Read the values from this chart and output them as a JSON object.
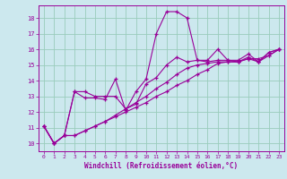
{
  "xlabel": "Windchill (Refroidissement éolien,°C)",
  "background_color": "#cce8ee",
  "line_color": "#990099",
  "grid_color": "#99ccbb",
  "xlim": [
    -0.5,
    23.5
  ],
  "ylim": [
    9.5,
    18.8
  ],
  "xticks": [
    0,
    1,
    2,
    3,
    4,
    5,
    6,
    7,
    8,
    9,
    10,
    11,
    12,
    13,
    14,
    15,
    16,
    17,
    18,
    19,
    20,
    21,
    22,
    23
  ],
  "yticks": [
    10,
    11,
    12,
    13,
    14,
    15,
    16,
    17,
    18
  ],
  "series": [
    [
      11.1,
      10.0,
      10.5,
      13.3,
      12.9,
      12.9,
      12.8,
      14.1,
      12.1,
      13.3,
      14.1,
      17.0,
      18.4,
      18.4,
      18.0,
      15.3,
      15.3,
      16.0,
      15.3,
      15.3,
      15.7,
      15.2,
      15.8,
      16.0
    ],
    [
      11.1,
      10.0,
      10.5,
      13.3,
      13.3,
      13.0,
      13.0,
      13.0,
      12.2,
      12.5,
      13.8,
      14.2,
      15.0,
      15.5,
      15.2,
      15.3,
      15.2,
      15.3,
      15.3,
      15.2,
      15.5,
      15.2,
      15.8,
      16.0
    ],
    [
      11.1,
      10.0,
      10.5,
      10.5,
      10.8,
      11.1,
      11.4,
      11.7,
      12.0,
      12.3,
      12.6,
      13.0,
      13.3,
      13.7,
      14.0,
      14.4,
      14.7,
      15.1,
      15.2,
      15.2,
      15.4,
      15.4,
      15.6,
      16.0
    ],
    [
      11.1,
      10.0,
      10.5,
      10.5,
      10.8,
      11.1,
      11.4,
      11.8,
      12.2,
      12.6,
      13.0,
      13.5,
      13.9,
      14.4,
      14.8,
      15.0,
      15.1,
      15.2,
      15.2,
      15.2,
      15.4,
      15.2,
      15.6,
      16.0
    ]
  ]
}
